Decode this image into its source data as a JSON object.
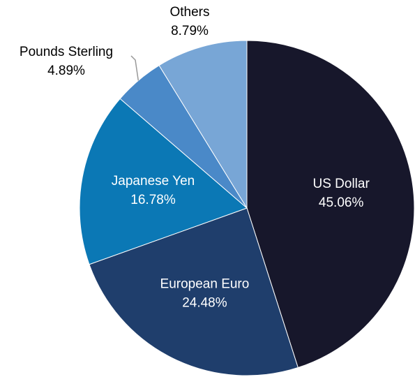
{
  "chart_data": {
    "type": "pie",
    "categories": [
      "US Dollar",
      "European Euro",
      "Japanese Yen",
      "Pounds Sterling",
      "Others"
    ],
    "values": [
      45.06,
      24.48,
      16.78,
      4.89,
      8.79
    ],
    "value_labels": [
      "45.06%",
      "24.48%",
      "16.78%",
      "4.89%",
      "8.79%"
    ],
    "colors": [
      "#17172b",
      "#1f3e6c",
      "#0b78b5",
      "#4a89c8",
      "#78a6d6"
    ]
  }
}
